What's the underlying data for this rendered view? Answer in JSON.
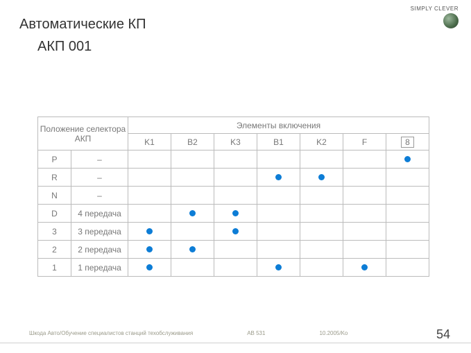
{
  "brand": {
    "tagline": "SIMPLY CLEVER",
    "logo_color": "#4a6b4a"
  },
  "title": "Автоматические КП",
  "subtitle": "АКП 001",
  "table": {
    "header_selector": "Положение селектора АКП",
    "header_elements": "Элементы включения",
    "columns": [
      "K1",
      "B2",
      "K3",
      "B1",
      "K2",
      "F",
      "8"
    ],
    "rows": [
      {
        "pos": "P",
        "gear": "–",
        "cells": [
          0,
          0,
          0,
          0,
          0,
          0,
          1
        ]
      },
      {
        "pos": "R",
        "gear": "–",
        "cells": [
          0,
          0,
          0,
          1,
          1,
          0,
          0
        ]
      },
      {
        "pos": "N",
        "gear": "–",
        "cells": [
          0,
          0,
          0,
          0,
          0,
          0,
          0
        ]
      },
      {
        "pos": "D",
        "gear": "4 передача",
        "cells": [
          0,
          1,
          1,
          0,
          0,
          0,
          0
        ]
      },
      {
        "pos": "3",
        "gear": "3 передача",
        "cells": [
          1,
          0,
          1,
          0,
          0,
          0,
          0
        ]
      },
      {
        "pos": "2",
        "gear": "2 передача",
        "cells": [
          1,
          1,
          0,
          0,
          0,
          0,
          0
        ]
      },
      {
        "pos": "1",
        "gear": "1 передача",
        "cells": [
          1,
          0,
          0,
          1,
          0,
          1,
          0
        ]
      }
    ],
    "dot_color": "#0d7dd6",
    "border_color": "#bbbbbb",
    "text_color": "#777777"
  },
  "footer": {
    "left": "Шкода Авто/Обучение специалистов станций техобслуживания",
    "mid": "AB 531",
    "right": "10.2005/Ko"
  },
  "page_number": "54"
}
